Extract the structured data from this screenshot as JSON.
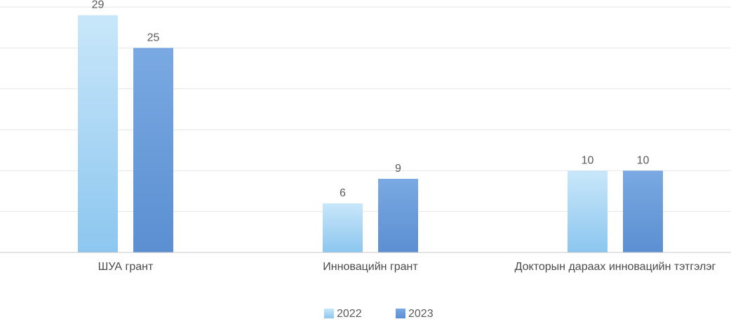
{
  "chart_data": {
    "type": "bar",
    "title": "",
    "xlabel": "",
    "ylabel": "",
    "categories": [
      "ШУА грант",
      "Инновацийн грант",
      "Докторын дараах инновацийн тэтгэлэг"
    ],
    "series": [
      {
        "name": "2022",
        "values": [
          29,
          6,
          10
        ],
        "color": "#a9d7f5",
        "color_top": "#c9e7fa",
        "color_bottom": "#8cc6ef"
      },
      {
        "name": "2023",
        "values": [
          25,
          9,
          10
        ],
        "color": "#6f9fdc",
        "color_top": "#7aa9e2",
        "color_bottom": "#5b8fd2"
      }
    ],
    "ylim": [
      0,
      30
    ],
    "grid": true,
    "legend_position": "bottom-center",
    "value_labels": true
  }
}
